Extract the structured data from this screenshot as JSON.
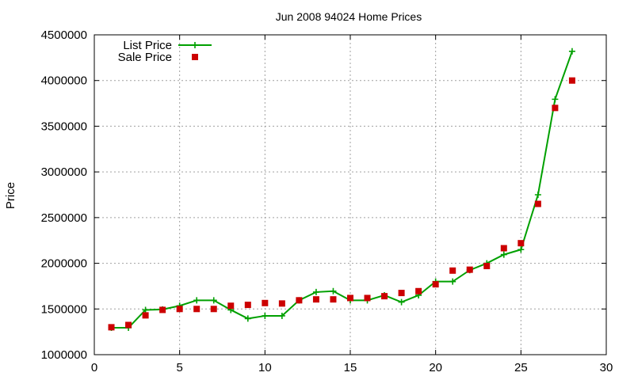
{
  "chart_data": {
    "type": "line",
    "title": "Jun 2008 94024 Home Prices",
    "xlabel": "",
    "ylabel": "Price",
    "xlim": [
      0,
      30
    ],
    "ylim": [
      1000000,
      4500000
    ],
    "xticks": [
      0,
      5,
      10,
      15,
      20,
      25,
      30
    ],
    "yticks": [
      1000000,
      1500000,
      2000000,
      2500000,
      3000000,
      3500000,
      4000000,
      4500000
    ],
    "grid": true,
    "legend_position": "top-left",
    "series": [
      {
        "name": "List Price",
        "style": "line-with-plus-markers",
        "color": "#00a000",
        "x": [
          1,
          2,
          3,
          4,
          5,
          6,
          7,
          8,
          9,
          10,
          11,
          12,
          13,
          14,
          15,
          16,
          17,
          18,
          19,
          20,
          21,
          22,
          23,
          24,
          25,
          26,
          27,
          28
        ],
        "values": [
          1295000,
          1295000,
          1490000,
          1495000,
          1535000,
          1595000,
          1595000,
          1490000,
          1395000,
          1425000,
          1425000,
          1595000,
          1685000,
          1695000,
          1595000,
          1595000,
          1650000,
          1575000,
          1650000,
          1800000,
          1800000,
          1925000,
          2000000,
          2095000,
          2150000,
          2750000,
          3795000,
          4320000
        ]
      },
      {
        "name": "Sale Price",
        "style": "square-markers",
        "color": "#cc0000",
        "x": [
          1,
          2,
          3,
          4,
          5,
          6,
          7,
          8,
          9,
          10,
          11,
          12,
          13,
          14,
          15,
          16,
          17,
          18,
          19,
          20,
          21,
          22,
          23,
          24,
          25,
          26,
          27,
          28
        ],
        "values": [
          1300000,
          1325000,
          1430000,
          1490000,
          1500000,
          1500000,
          1500000,
          1535000,
          1545000,
          1565000,
          1560000,
          1595000,
          1605000,
          1605000,
          1620000,
          1620000,
          1640000,
          1675000,
          1695000,
          1770000,
          1920000,
          1930000,
          1970000,
          2165000,
          2220000,
          2650000,
          3700000,
          4000000
        ]
      }
    ]
  }
}
